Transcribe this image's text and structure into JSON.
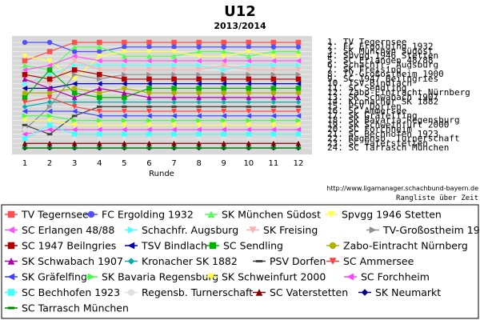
{
  "chart_data": {
    "type": "line",
    "title": "U12",
    "subtitle": "2013/2014",
    "xlabel": "Runde",
    "x": [
      1,
      2,
      3,
      4,
      5,
      6,
      7,
      8,
      9,
      10,
      11,
      12
    ],
    "ylim": [
      1,
      24
    ],
    "y_inverted": true,
    "grid": true,
    "legend_placement": "bottom",
    "source_url": "http://www.ligamanager.schachbund-bayern.de",
    "source_caption": "Rangliste über Zeit",
    "final_ranking_labels": [
      "1. TV Tegernsee",
      "2. FC Ergolding 1932",
      "3. SK München Südost",
      "4. Spvgg 1946 Stetten",
      "5. SC Erlangen 48/88",
      "6. Schachfr. Augsburg",
      "7. SK Freising",
      "8. TV-Großostheim 1900",
      "9. SC 1947 Beilngries",
      "10. TSV Bindlach",
      "11. SC Sendling",
      "12. Zabo-Eintracht Nürnberg",
      "13. SK Schwabach 1907",
      "14. Kronacher SK 1882",
      "15. PSV Dorfen",
      "16. SC Ammersee",
      "17. SK Gräfelfing",
      "18. SK Bavaria Regensburg",
      "19. SK Schweinfurt 2000",
      "20. SC Forchheim",
      "21. SC Bechhofen 1923",
      "22. Regensb. Turnerschaft",
      "23. SC Vaterstetten",
      "24. SC Tarrasch München"
    ],
    "series": [
      {
        "name": "TV Tegernsee",
        "color": "#ff5050",
        "marker": "square",
        "values": [
          5,
          3,
          1,
          1,
          1,
          1,
          1,
          1,
          1,
          1,
          1,
          1
        ]
      },
      {
        "name": "FC Ergolding 1932",
        "color": "#5050ff",
        "marker": "circle",
        "values": [
          1,
          1,
          3,
          3,
          2,
          2,
          2,
          2,
          2,
          2,
          2,
          2
        ]
      },
      {
        "name": "SK München Südost",
        "color": "#50ff50",
        "marker": "triangle-up",
        "values": [
          6,
          7,
          2,
          2,
          4,
          4,
          4,
          3,
          3,
          4,
          3,
          3
        ]
      },
      {
        "name": "Spvgg 1946 Stetten",
        "color": "#ffff50",
        "marker": "triangle-down",
        "values": [
          4,
          5,
          9,
          4,
          3,
          3,
          3,
          4,
          4,
          3,
          4,
          4
        ]
      },
      {
        "name": "SC Erlangen 48/88",
        "color": "#ff50ff",
        "marker": "triangle-left",
        "values": [
          7,
          6,
          4,
          5,
          5,
          5,
          5,
          5,
          5,
          5,
          5,
          5
        ]
      },
      {
        "name": "Schachfr. Augsburg",
        "color": "#50ffff",
        "marker": "triangle-right",
        "values": [
          10,
          8,
          6,
          6,
          6,
          6,
          6,
          6,
          7,
          6,
          6,
          6
        ]
      },
      {
        "name": "SK Freising",
        "color": "#ffb0b0",
        "marker": "triangle-down",
        "values": [
          9,
          10,
          5,
          7,
          7,
          7,
          7,
          7,
          6,
          7,
          7,
          7
        ]
      },
      {
        "name": "TV-Großostheim 1900",
        "color": "#909090",
        "marker": "triangle-right",
        "values": [
          20,
          15,
          8,
          9,
          8,
          8,
          8,
          8,
          8,
          8,
          8,
          8
        ]
      },
      {
        "name": "SC 1947 Beilngries",
        "color": "#b00000",
        "marker": "square",
        "values": [
          8,
          9,
          7,
          8,
          9,
          9,
          9,
          9,
          9,
          9,
          9,
          9
        ]
      },
      {
        "name": "TSV Bindlach",
        "color": "#0000b0",
        "marker": "triangle-left",
        "values": [
          11,
          11,
          10,
          10,
          10,
          10,
          10,
          10,
          10,
          10,
          10,
          10
        ]
      },
      {
        "name": "SC Sendling",
        "color": "#00b000",
        "marker": "square",
        "values": [
          13,
          7,
          12,
          13,
          13,
          11,
          11,
          11,
          11,
          11,
          11,
          11
        ]
      },
      {
        "name": "Zabo-Eintracht Nürnberg",
        "color": "#b0b000",
        "marker": "circle",
        "values": [
          12,
          12,
          11,
          12,
          11,
          12,
          12,
          12,
          12,
          12,
          12,
          12
        ]
      },
      {
        "name": "SK Schwabach 1907",
        "color": "#b000b0",
        "marker": "triangle-up",
        "values": [
          9,
          11,
          13,
          11,
          12,
          13,
          13,
          13,
          13,
          13,
          13,
          13
        ]
      },
      {
        "name": "Kronacher SK 1882",
        "color": "#00b0b0",
        "marker": "diamond",
        "values": [
          15,
          14,
          14,
          14,
          14,
          14,
          14,
          14,
          14,
          14,
          14,
          14
        ]
      },
      {
        "name": "PSV Dorfen",
        "color": "#404040",
        "marker": "dash",
        "values": [
          19,
          21,
          17,
          15,
          15,
          15,
          15,
          15,
          15,
          15,
          15,
          15
        ]
      },
      {
        "name": "SC Ammersee",
        "color": "#ff4040",
        "marker": "triangle-down",
        "values": [
          14,
          13,
          15,
          16,
          16,
          16,
          16,
          16,
          16,
          16,
          16,
          16
        ]
      },
      {
        "name": "SK Gräfelfing",
        "color": "#4040ff",
        "marker": "triangle-left",
        "values": [
          16,
          16,
          16,
          17,
          17,
          17,
          17,
          17,
          17,
          17,
          17,
          17
        ]
      },
      {
        "name": "SK Bavaria Regensburg",
        "color": "#40ff40",
        "marker": "triangle-right",
        "values": [
          17,
          17,
          18,
          18,
          18,
          18,
          18,
          18,
          18,
          18,
          18,
          18
        ]
      },
      {
        "name": "SK Schweinfurt 2000",
        "color": "#ffff40",
        "marker": "triangle-down",
        "values": [
          18,
          18,
          19,
          19,
          19,
          19,
          19,
          19,
          19,
          19,
          19,
          19
        ]
      },
      {
        "name": "SC Forchheim",
        "color": "#ff40ff",
        "marker": "triangle-left",
        "values": [
          21,
          20,
          20,
          20,
          20,
          20,
          20,
          20,
          20,
          20,
          20,
          20
        ]
      },
      {
        "name": "SC Bechhofen 1923",
        "color": "#40ffff",
        "marker": "square",
        "values": [
          22,
          19,
          21,
          21,
          21,
          21,
          21,
          21,
          21,
          21,
          21,
          21
        ]
      },
      {
        "name": "Regensb. Turnerschaft",
        "color": "#e0e0e0",
        "marker": "circle",
        "values": [
          20,
          22,
          22,
          22,
          22,
          22,
          22,
          22,
          22,
          22,
          22,
          22
        ]
      },
      {
        "name": "SC Vaterstetten",
        "color": "#800000",
        "marker": "triangle-up",
        "values": [
          23,
          23,
          23,
          23,
          23,
          23,
          23,
          23,
          23,
          23,
          23,
          23
        ]
      },
      {
        "name": "SK Neumarkt",
        "color": "#000080",
        "marker": "diamond",
        "values": [
          24,
          24,
          24,
          24,
          24,
          24,
          24,
          24,
          24,
          24,
          24,
          24
        ]
      },
      {
        "name": "SC Tarrasch München",
        "color": "#008000",
        "marker": "dash",
        "values": [
          24,
          24,
          24,
          24,
          24,
          24,
          24,
          24,
          24,
          24,
          24,
          24
        ]
      }
    ]
  }
}
